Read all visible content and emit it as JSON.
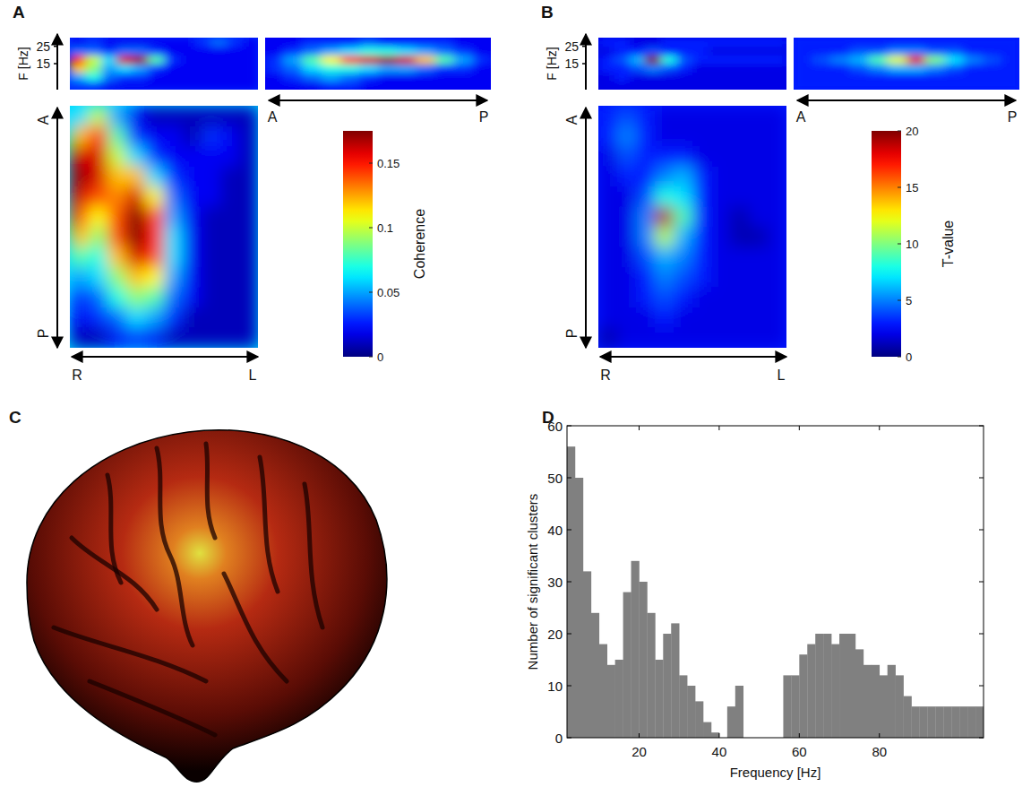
{
  "chart_data": [
    {
      "type": "heatmap",
      "panel": "A",
      "f_label": "F [Hz]",
      "ylim": [
        0,
        30
      ],
      "yticks": [
        15,
        25
      ],
      "freq_bins": [
        0,
        5,
        10,
        15,
        20,
        25,
        30
      ],
      "ap_labels": [
        "A",
        "P"
      ],
      "rl_labels": [
        "R",
        "L"
      ],
      "spectrum_rl": [
        [
          0.03,
          0.03,
          0.02,
          0.02,
          0.02,
          0.02,
          0.02,
          0.02,
          0.02,
          0.02,
          0.02,
          0.02
        ],
        [
          0.05,
          0.07,
          0.04,
          0.03,
          0.03,
          0.02,
          0.02,
          0.02,
          0.02,
          0.02,
          0.02,
          0.02
        ],
        [
          0.12,
          0.09,
          0.05,
          0.06,
          0.05,
          0.03,
          0.02,
          0.02,
          0.02,
          0.02,
          0.02,
          0.02
        ],
        [
          0.15,
          0.1,
          0.06,
          0.16,
          0.17,
          0.08,
          0.03,
          0.02,
          0.02,
          0.02,
          0.02,
          0.02
        ],
        [
          0.04,
          0.04,
          0.03,
          0.04,
          0.04,
          0.03,
          0.02,
          0.02,
          0.02,
          0.02,
          0.02,
          0.02
        ],
        [
          0.02,
          0.03,
          0.02,
          0.02,
          0.02,
          0.02,
          0.02,
          0.02,
          0.03,
          0.04,
          0.03,
          0.02
        ]
      ],
      "spectrum_ap": [
        [
          0.02,
          0.02,
          0.02,
          0.03,
          0.03,
          0.02,
          0.02,
          0.02,
          0.02,
          0.02,
          0.02,
          0.02
        ],
        [
          0.02,
          0.03,
          0.04,
          0.05,
          0.04,
          0.03,
          0.02,
          0.02,
          0.02,
          0.02,
          0.02,
          0.02
        ],
        [
          0.03,
          0.04,
          0.06,
          0.07,
          0.07,
          0.06,
          0.05,
          0.05,
          0.04,
          0.03,
          0.03,
          0.02
        ],
        [
          0.03,
          0.05,
          0.08,
          0.11,
          0.14,
          0.16,
          0.17,
          0.16,
          0.12,
          0.08,
          0.05,
          0.03
        ],
        [
          0.02,
          0.03,
          0.04,
          0.05,
          0.06,
          0.07,
          0.07,
          0.06,
          0.05,
          0.04,
          0.03,
          0.02
        ],
        [
          0.02,
          0.02,
          0.03,
          0.03,
          0.03,
          0.04,
          0.03,
          0.03,
          0.03,
          0.03,
          0.02,
          0.02
        ]
      ],
      "map": [
        [
          0.06,
          0.1,
          0.05,
          0.02,
          0.01,
          0.01,
          0.01,
          0.01,
          0.01,
          0.01
        ],
        [
          0.12,
          0.15,
          0.08,
          0.03,
          0.02,
          0.02,
          0.01,
          0.03,
          0.02,
          0.01
        ],
        [
          0.16,
          0.16,
          0.1,
          0.06,
          0.03,
          0.02,
          0.02,
          0.02,
          0.02,
          0.01
        ],
        [
          0.17,
          0.16,
          0.12,
          0.12,
          0.06,
          0.03,
          0.02,
          0.02,
          0.01,
          0.01
        ],
        [
          0.16,
          0.14,
          0.13,
          0.16,
          0.11,
          0.04,
          0.02,
          0.02,
          0.01,
          0.01
        ],
        [
          0.14,
          0.11,
          0.14,
          0.18,
          0.14,
          0.05,
          0.02,
          0.01,
          0.01,
          0.01
        ],
        [
          0.12,
          0.09,
          0.14,
          0.18,
          0.15,
          0.06,
          0.02,
          0.01,
          0.01,
          0.01
        ],
        [
          0.08,
          0.07,
          0.12,
          0.16,
          0.14,
          0.06,
          0.02,
          0.01,
          0.01,
          0.01
        ],
        [
          0.05,
          0.06,
          0.09,
          0.12,
          0.11,
          0.05,
          0.02,
          0.01,
          0.01,
          0.01
        ],
        [
          0.03,
          0.04,
          0.07,
          0.09,
          0.08,
          0.04,
          0.02,
          0.01,
          0.01,
          0.01
        ],
        [
          0.02,
          0.03,
          0.04,
          0.06,
          0.05,
          0.03,
          0.01,
          0.01,
          0.01,
          0.01
        ],
        [
          0.01,
          0.01,
          0.02,
          0.03,
          0.02,
          0.01,
          0.01,
          0.01,
          0.01,
          0.01
        ]
      ],
      "colorbar": {
        "label": "Coherence",
        "range": [
          0,
          0.175
        ],
        "ticks": [
          0,
          0.05,
          0.1,
          0.15
        ]
      }
    },
    {
      "type": "heatmap",
      "panel": "B",
      "f_label": "F [Hz]",
      "ylim": [
        0,
        30
      ],
      "yticks": [
        15,
        25
      ],
      "freq_bins": [
        0,
        5,
        10,
        15,
        20,
        25,
        30
      ],
      "ap_labels": [
        "A",
        "P"
      ],
      "rl_labels": [
        "R",
        "L"
      ],
      "spectrum_rl": [
        [
          2,
          2,
          2,
          2,
          2,
          2,
          2,
          2,
          2,
          2,
          2,
          2
        ],
        [
          2,
          3,
          2,
          2,
          2,
          2,
          2,
          2,
          2,
          2,
          2,
          2
        ],
        [
          3,
          3,
          4,
          5,
          4,
          3,
          2,
          2,
          2,
          2,
          2,
          2
        ],
        [
          3,
          4,
          6,
          20,
          8,
          4,
          3,
          3,
          3,
          3,
          3,
          3
        ],
        [
          2,
          3,
          3,
          4,
          3,
          3,
          3,
          2,
          2,
          2,
          2,
          2
        ],
        [
          3,
          3,
          2,
          2,
          3,
          3,
          3,
          3,
          3,
          3,
          3,
          3
        ]
      ],
      "spectrum_ap": [
        [
          3,
          3,
          3,
          3,
          3,
          3,
          3,
          3,
          3,
          3,
          3,
          3
        ],
        [
          3,
          3,
          3,
          3,
          3,
          3,
          3,
          3,
          3,
          3,
          3,
          3
        ],
        [
          3,
          3,
          3,
          4,
          5,
          6,
          6,
          5,
          4,
          3,
          3,
          3
        ],
        [
          3,
          4,
          5,
          6,
          9,
          12,
          18,
          10,
          7,
          5,
          4,
          3
        ],
        [
          3,
          3,
          3,
          4,
          4,
          5,
          5,
          4,
          4,
          3,
          3,
          3
        ],
        [
          3,
          3,
          3,
          3,
          3,
          3,
          3,
          3,
          3,
          3,
          3,
          3
        ]
      ],
      "map": [
        [
          3,
          4,
          3,
          2,
          2,
          2,
          2,
          2,
          2,
          2
        ],
        [
          3,
          5,
          3,
          2,
          2,
          2,
          2,
          2,
          2,
          2
        ],
        [
          2,
          4,
          3,
          3,
          3,
          2,
          2,
          2,
          2,
          2
        ],
        [
          2,
          3,
          3,
          5,
          6,
          3,
          2,
          2,
          2,
          2
        ],
        [
          2,
          2,
          4,
          8,
          7,
          3,
          2,
          2,
          2,
          2
        ],
        [
          2,
          2,
          5,
          19,
          9,
          3,
          2,
          1,
          2,
          2
        ],
        [
          2,
          2,
          5,
          11,
          6,
          3,
          2,
          1,
          1,
          2
        ],
        [
          2,
          2,
          4,
          6,
          5,
          3,
          2,
          2,
          2,
          2
        ],
        [
          2,
          2,
          3,
          5,
          4,
          3,
          2,
          2,
          2,
          2
        ],
        [
          2,
          2,
          3,
          4,
          3,
          2,
          2,
          2,
          2,
          2
        ],
        [
          2,
          2,
          2,
          3,
          2,
          2,
          2,
          2,
          2,
          2
        ],
        [
          1,
          2,
          2,
          2,
          2,
          2,
          2,
          2,
          2,
          2
        ]
      ],
      "colorbar": {
        "label": "T-value",
        "range": [
          0,
          20
        ],
        "ticks": [
          0,
          5,
          10,
          15,
          20
        ]
      }
    },
    {
      "type": "image",
      "panel": "C"
    },
    {
      "type": "histogram",
      "panel": "D",
      "x_label": "Frequency [Hz]",
      "y_label": "Number of significant clusters",
      "bins": [
        2,
        4,
        6,
        8,
        10,
        12,
        14,
        16,
        18,
        20,
        22,
        24,
        26,
        28,
        30,
        32,
        34,
        36,
        38,
        40,
        42,
        44,
        46,
        48,
        50,
        52,
        54,
        56,
        58,
        60,
        62,
        64,
        66,
        68,
        70,
        72,
        74,
        76,
        78,
        80,
        82,
        84,
        86,
        88,
        90,
        92,
        94,
        96,
        98,
        100,
        102,
        104,
        106
      ],
      "counts": [
        56,
        50,
        32,
        24,
        18,
        14,
        15,
        28,
        34,
        30,
        24,
        15,
        20,
        22,
        12,
        10,
        7,
        3,
        1,
        0,
        6,
        10,
        0,
        0,
        0,
        0,
        0,
        12,
        12,
        16,
        18,
        20,
        20,
        18,
        20,
        20,
        17,
        14,
        14,
        12,
        14,
        12,
        8,
        6,
        6,
        6,
        6,
        6,
        6,
        6,
        6,
        6
      ],
      "color": "#808080",
      "xlim": [
        2,
        106
      ],
      "ylim": [
        0,
        60
      ],
      "xticks": [
        20,
        40,
        60,
        80
      ],
      "yticks": [
        0,
        10,
        20,
        30,
        40,
        50,
        60
      ]
    }
  ]
}
